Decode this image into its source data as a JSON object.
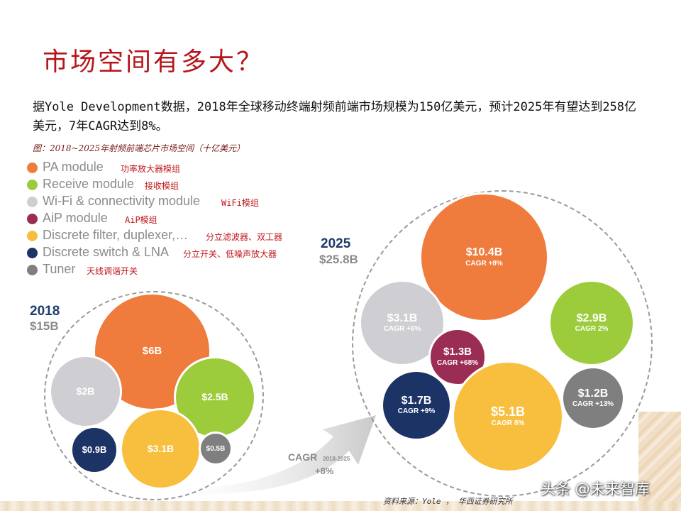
{
  "title": "市场空间有多大？",
  "intro": "据Yole Development数据，2018年全球移动终端射频前端市场规模为150亿美元，预计2025年有望达到258亿美元，7年CAGR达到8%。",
  "figure_caption": "图：2018~2025年射频前端芯片市场空间（十亿美元）",
  "legend": [
    {
      "en": "PA module",
      "zh": "功率放大器模组",
      "color": "#ef7b3c"
    },
    {
      "en": "Receive module",
      "zh": "接收模组",
      "color": "#9ccc3c"
    },
    {
      "en": "Wi-Fi & connectivity module",
      "zh": "WiFi模组",
      "color": "#cfcfd3"
    },
    {
      "en": "AiP module",
      "zh": "AiP模组",
      "color": "#9b2d55"
    },
    {
      "en": "Discrete filter, duplexer,…",
      "zh": "分立滤波器、双工器",
      "color": "#f8bf3e"
    },
    {
      "en": "Discrete switch & LNA",
      "zh": "分立开关、低噪声放大器",
      "color": "#1c3366"
    },
    {
      "en": "Tuner",
      "zh": "天线调谐开关",
      "color": "#7f7f7f"
    }
  ],
  "y2018": {
    "year": "2018",
    "total": "$15B",
    "bubbles": [
      {
        "value": "$6B",
        "color": "#ef7b3c"
      },
      {
        "value": "$2B",
        "color": "#cfcfd3"
      },
      {
        "value": "$2.5B",
        "color": "#9ccc3c"
      },
      {
        "value": "$0.9B",
        "color": "#1c3366"
      },
      {
        "value": "$3.1B",
        "color": "#f8bf3e"
      },
      {
        "value": "$0.5B",
        "color": "#7f7f7f"
      }
    ]
  },
  "y2025": {
    "year": "2025",
    "total": "$25.8B",
    "bubbles": [
      {
        "value": "$10.4B",
        "cagr": "CAGR +8%",
        "color": "#ef7b3c"
      },
      {
        "value": "$3.1B",
        "cagr": "CAGR +6%",
        "color": "#cfcfd3"
      },
      {
        "value": "$2.9B",
        "cagr": "CAGR 2%",
        "color": "#9ccc3c"
      },
      {
        "value": "$1.3B",
        "cagr": "CAGR +68%",
        "color": "#9b2d55"
      },
      {
        "value": "$1.7B",
        "cagr": "CAGR +9%",
        "color": "#1c3366"
      },
      {
        "value": "$5.1B",
        "cagr": "CAGR 8%",
        "color": "#f8bf3e"
      },
      {
        "value": "$1.2B",
        "cagr": "CAGR +13%",
        "color": "#7f7f7f"
      }
    ]
  },
  "arrow": {
    "label": "CAGR",
    "range": "2018-2025",
    "value": "+8%"
  },
  "source": "资料来源：Yole ， 华西证券研究所",
  "watermark": "头条 @未来智库"
}
